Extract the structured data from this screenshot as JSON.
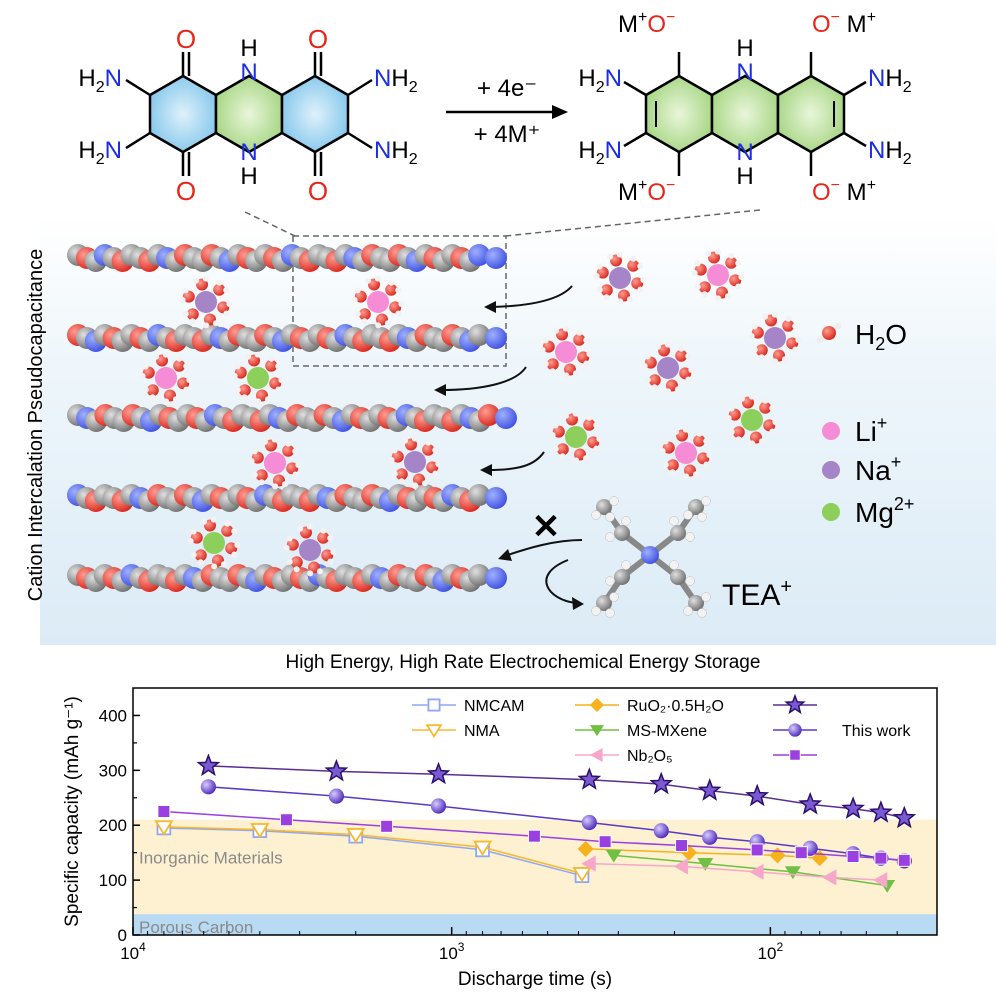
{
  "reaction": {
    "reactant": {
      "left_top": "H2N",
      "left_bottom": "H2N",
      "right_top": "NH2",
      "right_bottom": "NH2",
      "oxygen": "O",
      "nh": "NH",
      "n": "N",
      "h": "H"
    },
    "conditions": {
      "electrons": "+ 4e⁻",
      "cations": "+ 4M⁺"
    },
    "product": {
      "m": "M",
      "plus": "+",
      "o": "O",
      "minus": "−"
    }
  },
  "illustration": {
    "side_label": "Cation Intercalation Pseudocapacitance",
    "legend": [
      {
        "label": "H2O",
        "color": "#e8382f"
      },
      {
        "label": "Li⁺",
        "color": "#f68bd6"
      },
      {
        "label": "Na⁺",
        "color": "#a584c8"
      },
      {
        "label": "Mg²⁺",
        "color": "#8ccf5a"
      }
    ],
    "excluded_ion": "TEA⁺",
    "blocked_mark": "✕"
  },
  "chart_data": {
    "type": "scatter",
    "title": "High Energy, High Rate Electrochemical Energy Storage",
    "xlabel": "Discharge time (s)",
    "ylabel": "Specific capacity (mAh g⁻¹)",
    "x_scale": "log",
    "x_reversed": true,
    "xlim": [
      10000,
      30
    ],
    "ylim": [
      0,
      450
    ],
    "x_ticks": [
      {
        "value": 10000,
        "base": "10",
        "exp": "4"
      },
      {
        "value": 1000,
        "base": "10",
        "exp": "3"
      },
      {
        "value": 100,
        "base": "10",
        "exp": "2"
      }
    ],
    "y_ticks": [
      0,
      100,
      200,
      300,
      400
    ],
    "regions": [
      {
        "label": "Inorganic Materials",
        "y": [
          0,
          210
        ],
        "color": "#fdf1d1"
      },
      {
        "label": "Porous Carbon",
        "y": [
          0,
          38
        ],
        "color": "#b9daf3"
      }
    ],
    "legend_note": "This work",
    "series": [
      {
        "name": "NMCAM",
        "color": "#8fa7f2",
        "marker": "square-open",
        "x": [
          8000,
          4000,
          2000,
          800,
          390
        ],
        "y": [
          195,
          190,
          180,
          155,
          108
        ]
      },
      {
        "name": "NMA",
        "color": "#f6b830",
        "marker": "triangle-down-open",
        "x": [
          8000,
          4000,
          2000,
          800,
          390
        ],
        "y": [
          197,
          192,
          183,
          160,
          112
        ]
      },
      {
        "name": "RuO₂·0.5H₂O",
        "color": "#f6b21c",
        "marker": "diamond",
        "x": [
          380,
          180,
          95,
          70
        ],
        "y": [
          157,
          150,
          145,
          140
        ]
      },
      {
        "name": "MS-MXene",
        "color": "#6fc043",
        "marker": "triangle-down",
        "x": [
          310,
          160,
          85,
          43
        ],
        "y": [
          145,
          130,
          115,
          90
        ]
      },
      {
        "name": "Nb₂O₅",
        "color": "#f7a7c9",
        "marker": "triangle-left",
        "x": [
          370,
          190,
          110,
          65,
          45
        ],
        "y": [
          130,
          125,
          115,
          105,
          100
        ]
      },
      {
        "name": "",
        "color": "#5a2e8f",
        "marker": "star",
        "x": [
          5800,
          2300,
          1100,
          370,
          220,
          155,
          110,
          75,
          55,
          45,
          38
        ],
        "y": [
          308,
          298,
          293,
          283,
          275,
          263,
          253,
          238,
          230,
          223,
          213
        ]
      },
      {
        "name": "",
        "color": "#5a38c7",
        "marker": "sphere",
        "x": [
          5800,
          2300,
          1100,
          370,
          220,
          155,
          110,
          75,
          55,
          45,
          38
        ],
        "y": [
          270,
          253,
          235,
          205,
          190,
          178,
          170,
          158,
          148,
          140,
          135
        ]
      },
      {
        "name": "",
        "color": "#9a3fe0",
        "marker": "square",
        "x": [
          8000,
          3300,
          1600,
          550,
          330,
          190,
          110,
          80,
          55,
          45,
          38
        ],
        "y": [
          225,
          210,
          198,
          180,
          170,
          163,
          155,
          150,
          143,
          140,
          136
        ]
      }
    ]
  }
}
